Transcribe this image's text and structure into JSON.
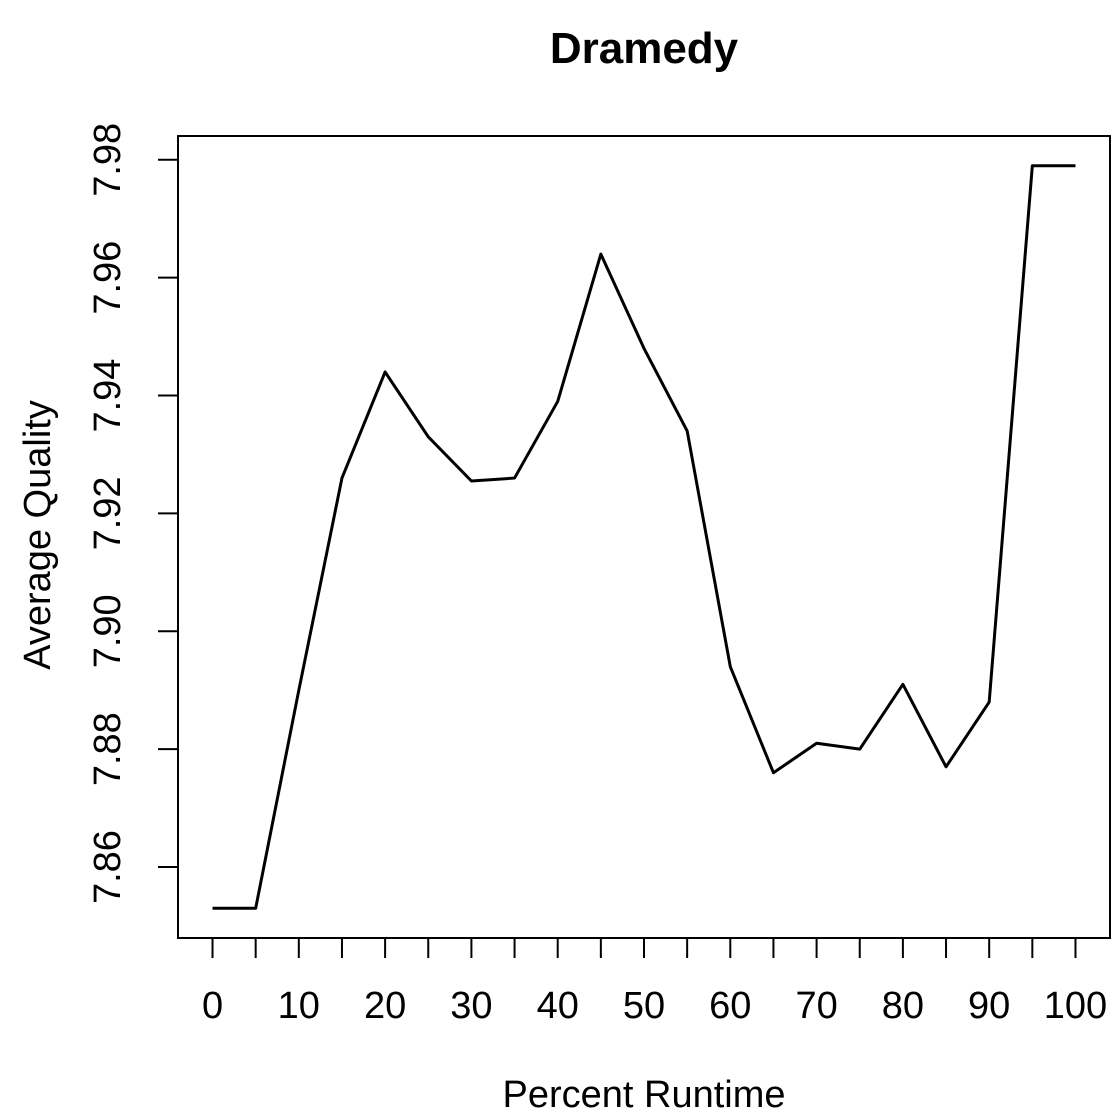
{
  "figure": {
    "background_color": "#ffffff",
    "foreground_color": "#000000"
  },
  "chart_data": {
    "type": "line",
    "title": "Dramedy",
    "xlabel": "Percent Runtime",
    "ylabel": "Average Quality",
    "x": [
      0,
      5,
      10,
      15,
      20,
      25,
      30,
      35,
      40,
      45,
      50,
      55,
      60,
      65,
      70,
      75,
      80,
      85,
      90,
      95,
      100
    ],
    "y": [
      7.853,
      7.853,
      7.89,
      7.926,
      7.944,
      7.933,
      7.9255,
      7.926,
      7.939,
      7.964,
      7.948,
      7.934,
      7.894,
      7.876,
      7.881,
      7.88,
      7.891,
      7.877,
      7.888,
      7.979,
      7.979
    ],
    "xlim": [
      0,
      100
    ],
    "ylim": [
      7.853,
      7.979
    ],
    "x_major_ticks": [
      0,
      10,
      20,
      30,
      40,
      50,
      60,
      70,
      80,
      90,
      100
    ],
    "x_major_tick_labels": [
      "0",
      "10",
      "20",
      "30",
      "40",
      "50",
      "60",
      "70",
      "80",
      "90",
      "100"
    ],
    "x_minor_ticks": [
      0,
      5,
      10,
      15,
      20,
      25,
      30,
      35,
      40,
      45,
      50,
      55,
      60,
      65,
      70,
      75,
      80,
      85,
      90,
      95,
      100
    ],
    "y_ticks": [
      7.86,
      7.88,
      7.9,
      7.92,
      7.94,
      7.96,
      7.98
    ],
    "y_tick_labels": [
      "7.86",
      "7.88",
      "7.90",
      "7.92",
      "7.94",
      "7.96",
      "7.98"
    ],
    "grid": false,
    "legend": null,
    "line_color": "#000000",
    "style": "r-base-plot"
  }
}
